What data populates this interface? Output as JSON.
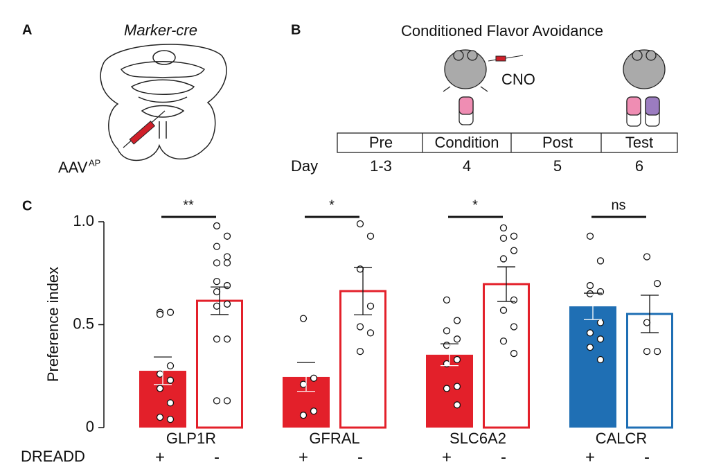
{
  "panel_a": {
    "label": "A",
    "title": "Marker-cre",
    "virus": "AAV",
    "virus_superscript": "AP"
  },
  "panel_b": {
    "label": "B",
    "title": "Conditioned Flavor Avoidance",
    "drug": "CNO",
    "stages": [
      "Pre",
      "Condition",
      "Post",
      "Test"
    ],
    "day_label": "Day",
    "days": [
      "1-3",
      "4",
      "5",
      "6"
    ]
  },
  "panel_c": {
    "label": "C"
  },
  "chart_data": {
    "type": "bar",
    "ylabel": "Preference index",
    "categories": [
      "GLP1R",
      "GFRAL",
      "SLC6A2",
      "CALCR"
    ],
    "colors": [
      "#e3202a",
      "#e3202a",
      "#e3202a",
      "#1f6fb4"
    ],
    "legend_title": "DREADD",
    "significance": [
      "**",
      "*",
      "*",
      "ns"
    ],
    "ylim": [
      0,
      1
    ],
    "yticks": [
      0,
      0.5,
      {
        "value": 1,
        "label": "1.0"
      }
    ],
    "series": [
      {
        "name": "+",
        "filled": true,
        "values": [
          0.276,
          0.246,
          0.354,
          0.589
        ],
        "errors": [
          0.067,
          0.07,
          0.053,
          0.064
        ],
        "points": [
          [
            0.56,
            0.56,
            0.55,
            0.3,
            0.26,
            0.23,
            0.19,
            0.12,
            0.05,
            0.04
          ],
          [
            0.53,
            0.24,
            0.21,
            0.08,
            0.06
          ],
          [
            0.62,
            0.52,
            0.47,
            0.43,
            0.4,
            0.33,
            0.31,
            0.2,
            0.19,
            0.11
          ],
          [
            0.93,
            0.81,
            0.69,
            0.66,
            0.65,
            0.51,
            0.46,
            0.43,
            0.39,
            0.33
          ]
        ]
      },
      {
        "name": "-",
        "filled": false,
        "values": [
          0.616,
          0.663,
          0.697,
          0.552
        ],
        "errors": [
          0.067,
          0.115,
          0.084,
          0.091
        ],
        "points": [
          [
            0.98,
            0.93,
            0.88,
            0.83,
            0.8,
            0.8,
            0.71,
            0.69,
            0.66,
            0.6,
            0.59,
            0.43,
            0.43,
            0.13,
            0.13
          ],
          [
            0.99,
            0.93,
            0.77,
            0.59,
            0.49,
            0.46,
            0.37
          ],
          [
            0.97,
            0.93,
            0.92,
            0.86,
            0.82,
            0.62,
            0.57,
            0.49,
            0.42,
            0.36
          ],
          [
            0.83,
            0.7,
            0.51,
            0.37,
            0.37
          ]
        ]
      }
    ]
  }
}
